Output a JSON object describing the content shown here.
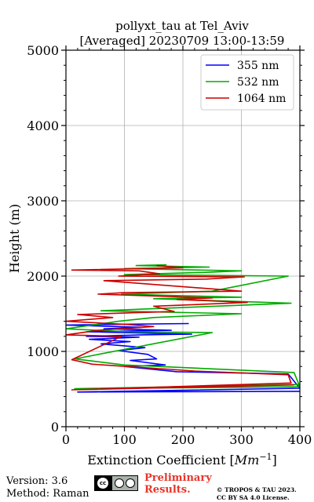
{
  "chart_data": {
    "type": "line",
    "title_line1": "pollyxt_tau at Tel_Aviv",
    "title_line2": "[Averaged] 20230709 13:00-13:59",
    "xlabel": "Extinction Coefficient [",
    "xlabel_unit": "Mm",
    "xlabel_sup": "−1",
    "xlabel_end": "]",
    "ylabel": "Height (m)",
    "xlim": [
      0,
      400
    ],
    "ylim": [
      0,
      5000
    ],
    "xticks": [
      0,
      100,
      200,
      300,
      400
    ],
    "yticks": [
      0,
      1000,
      2000,
      3000,
      4000,
      5000
    ],
    "grid": true,
    "legend_position": "top-right",
    "series": [
      {
        "name": "355 nm",
        "color": "#0000ff",
        "points": [
          [
            410,
            470
          ],
          [
            20,
            460
          ],
          [
            400,
            510
          ],
          [
            380,
            700
          ],
          [
            190,
            730
          ],
          [
            100,
            800
          ],
          [
            170,
            820
          ],
          [
            110,
            880
          ],
          [
            155,
            900
          ],
          [
            140,
            960
          ],
          [
            90,
            1010
          ],
          [
            135,
            1050
          ],
          [
            60,
            1100
          ],
          [
            110,
            1130
          ],
          [
            40,
            1160
          ],
          [
            125,
            1190
          ],
          [
            35,
            1200
          ],
          [
            130,
            1220
          ],
          [
            215,
            1230
          ],
          [
            35,
            1260
          ],
          [
            180,
            1280
          ],
          [
            65,
            1300
          ],
          [
            130,
            1320
          ],
          [
            0,
            1350
          ],
          [
            95,
            1360
          ],
          [
            210,
            1370
          ]
        ]
      },
      {
        "name": "532 nm",
        "color": "#00aa00",
        "points": [
          [
            400,
            560
          ],
          [
            15,
            505
          ],
          [
            400,
            530
          ],
          [
            390,
            720
          ],
          [
            100,
            820
          ],
          [
            15,
            900
          ],
          [
            250,
            1250
          ],
          [
            110,
            1260
          ],
          [
            0,
            1300
          ],
          [
            90,
            1400
          ],
          [
            150,
            1450
          ],
          [
            300,
            1500
          ],
          [
            60,
            1540
          ],
          [
            385,
            1640
          ],
          [
            150,
            1700
          ],
          [
            300,
            1720
          ],
          [
            95,
            1760
          ],
          [
            250,
            1800
          ],
          [
            380,
            2000
          ],
          [
            100,
            2020
          ],
          [
            240,
            2050
          ],
          [
            300,
            2070
          ],
          [
            100,
            2100
          ],
          [
            245,
            2120
          ],
          [
            120,
            2140
          ],
          [
            172,
            2150
          ]
        ]
      },
      {
        "name": "1064 nm",
        "color": "#cc0000",
        "points": [
          [
            390,
            555
          ],
          [
            10,
            490
          ],
          [
            385,
            580
          ],
          [
            380,
            690
          ],
          [
            220,
            740
          ],
          [
            45,
            830
          ],
          [
            10,
            890
          ],
          [
            95,
            1200
          ],
          [
            0,
            1220
          ],
          [
            55,
            1280
          ],
          [
            150,
            1330
          ],
          [
            100,
            1360
          ],
          [
            0,
            1400
          ],
          [
            80,
            1450
          ],
          [
            20,
            1490
          ],
          [
            185,
            1530
          ],
          [
            150,
            1600
          ],
          [
            310,
            1650
          ],
          [
            190,
            1690
          ],
          [
            250,
            1710
          ],
          [
            55,
            1760
          ],
          [
            100,
            1780
          ],
          [
            300,
            1800
          ],
          [
            65,
            1940
          ],
          [
            240,
            1960
          ],
          [
            305,
            1990
          ],
          [
            90,
            2000
          ],
          [
            160,
            2030
          ],
          [
            125,
            2070
          ],
          [
            10,
            2080
          ],
          [
            200,
            2110
          ],
          [
            155,
            2140
          ]
        ]
      }
    ]
  },
  "footer": {
    "version": "Version: 3.6",
    "method": "Method: Raman",
    "cc_text": "cc",
    "preliminary_line1": "Preliminary",
    "preliminary_line2": "Results.",
    "copyright_line1": "© TROPOS & TAU 2023.",
    "copyright_line2": "CC BY SA 4.0 License."
  }
}
